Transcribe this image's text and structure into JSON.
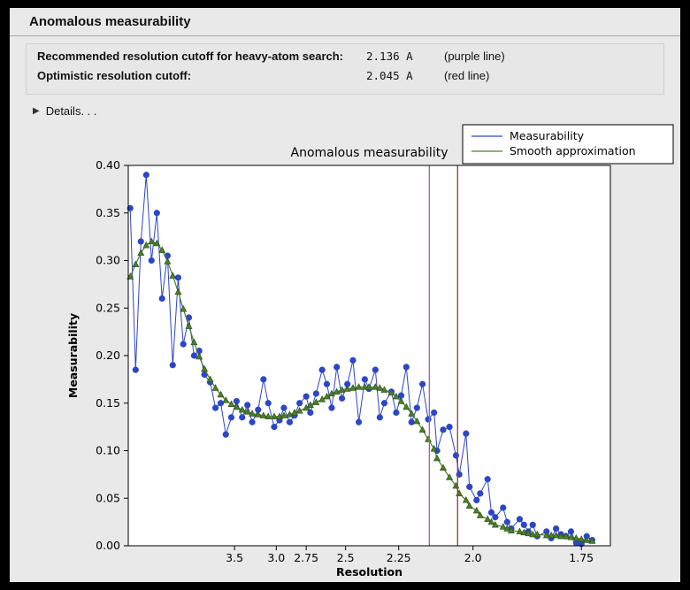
{
  "window": {
    "title": "Anomalous measurability"
  },
  "info": {
    "rows": [
      {
        "label": "Recommended resolution cutoff for heavy-atom search:",
        "value": "2.136 A",
        "note": "(purple line)"
      },
      {
        "label": "Optimistic resolution cutoff:",
        "value": "2.045 A",
        "note": "(red line)"
      }
    ],
    "disclosure_icon": "▶",
    "details_label": "Details. . ."
  },
  "chart_data": {
    "type": "line",
    "title": "Anomalous measurability",
    "xlabel": "Resolution",
    "ylabel": "Measurability",
    "x_axis": {
      "scale": "inverse_d_squared",
      "range_inv_d2": [
        0.0066,
        0.347
      ],
      "tick_values": [
        3.5,
        3.0,
        2.75,
        2.5,
        2.25,
        2.0,
        1.75
      ],
      "tick_labels": [
        "3.5",
        "3.0",
        "2.75",
        "2.5",
        "2.25",
        "2.0",
        "1.75"
      ]
    },
    "y_axis": {
      "range": [
        0.0,
        0.4
      ],
      "tick_values": [
        0.0,
        0.05,
        0.1,
        0.15,
        0.2,
        0.25,
        0.3,
        0.35,
        0.4
      ],
      "tick_labels": [
        "0.00",
        "0.05",
        "0.10",
        "0.15",
        "0.20",
        "0.25",
        "0.30",
        "0.35",
        "0.40"
      ]
    },
    "x_resolution": [
      11.18,
      9.21,
      8.03,
      7.2,
      6.59,
      6.11,
      5.73,
      5.4,
      5.13,
      4.89,
      4.69,
      4.5,
      4.34,
      4.2,
      4.07,
      3.94,
      3.83,
      3.73,
      3.64,
      3.55,
      3.47,
      3.39,
      3.32,
      3.26,
      3.19,
      3.13,
      3.08,
      3.02,
      2.97,
      2.93,
      2.88,
      2.84,
      2.8,
      2.75,
      2.72,
      2.68,
      2.64,
      2.61,
      2.58,
      2.55,
      2.52,
      2.49,
      2.46,
      2.43,
      2.4,
      2.38,
      2.35,
      2.33,
      2.31,
      2.28,
      2.26,
      2.24,
      2.22,
      2.2,
      2.18,
      2.16,
      2.14,
      2.12,
      2.11,
      2.09,
      2.07,
      2.05,
      2.04,
      2.02,
      2.01,
      1.99,
      1.98,
      1.96,
      1.95,
      1.94,
      1.92,
      1.91,
      1.9,
      1.88,
      1.87,
      1.86,
      1.85,
      1.84,
      1.82,
      1.81,
      1.8,
      1.79,
      1.78,
      1.77,
      1.76,
      1.75,
      1.74,
      1.73
    ],
    "series": [
      {
        "name": "Measurability",
        "color": "#2c46c8",
        "marker": "circle",
        "values": [
          0.355,
          0.185,
          0.32,
          0.39,
          0.3,
          0.35,
          0.26,
          0.305,
          0.19,
          0.282,
          0.212,
          0.24,
          0.2,
          0.205,
          0.18,
          0.172,
          0.145,
          0.15,
          0.117,
          0.135,
          0.152,
          0.135,
          0.148,
          0.13,
          0.143,
          0.175,
          0.15,
          0.125,
          0.132,
          0.145,
          0.13,
          0.137,
          0.15,
          0.157,
          0.14,
          0.16,
          0.185,
          0.17,
          0.145,
          0.188,
          0.155,
          0.17,
          0.195,
          0.13,
          0.175,
          0.165,
          0.185,
          0.135,
          0.15,
          0.162,
          0.14,
          0.158,
          0.188,
          0.13,
          0.145,
          0.17,
          0.133,
          0.14,
          0.1,
          0.122,
          0.125,
          0.095,
          0.075,
          0.118,
          0.062,
          0.048,
          0.055,
          0.07,
          0.035,
          0.03,
          0.04,
          0.025,
          0.018,
          0.028,
          0.022,
          0.015,
          0.022,
          0.01,
          0.015,
          0.008,
          0.018,
          0.012,
          0.01,
          0.015,
          0.003,
          0.002,
          0.01,
          0.006
        ]
      },
      {
        "name": "Smooth approximation",
        "color": "#4c7f2a",
        "marker": "triangle",
        "values": [
          0.283,
          0.296,
          0.308,
          0.316,
          0.32,
          0.318,
          0.311,
          0.299,
          0.284,
          0.267,
          0.249,
          0.231,
          0.214,
          0.199,
          0.186,
          0.175,
          0.166,
          0.159,
          0.153,
          0.149,
          0.146,
          0.143,
          0.141,
          0.139,
          0.138,
          0.137,
          0.136,
          0.136,
          0.136,
          0.137,
          0.138,
          0.14,
          0.142,
          0.145,
          0.148,
          0.151,
          0.154,
          0.157,
          0.16,
          0.162,
          0.164,
          0.165,
          0.166,
          0.167,
          0.167,
          0.167,
          0.167,
          0.166,
          0.164,
          0.161,
          0.157,
          0.152,
          0.146,
          0.139,
          0.131,
          0.122,
          0.112,
          0.102,
          0.092,
          0.082,
          0.072,
          0.063,
          0.055,
          0.048,
          0.042,
          0.037,
          0.032,
          0.028,
          0.025,
          0.022,
          0.02,
          0.018,
          0.016,
          0.015,
          0.014,
          0.013,
          0.012,
          0.012,
          0.011,
          0.011,
          0.011,
          0.01,
          0.01,
          0.009,
          0.008,
          0.007,
          0.006,
          0.005
        ]
      }
    ],
    "vlines": [
      {
        "resolution": 2.136,
        "color": "#a85cb8",
        "label": "purple line"
      },
      {
        "resolution": 2.045,
        "color": "#a0392a",
        "label": "red line"
      }
    ],
    "legend": {
      "position": "top-right",
      "entries": [
        "Measurability",
        "Smooth approximation"
      ]
    }
  }
}
